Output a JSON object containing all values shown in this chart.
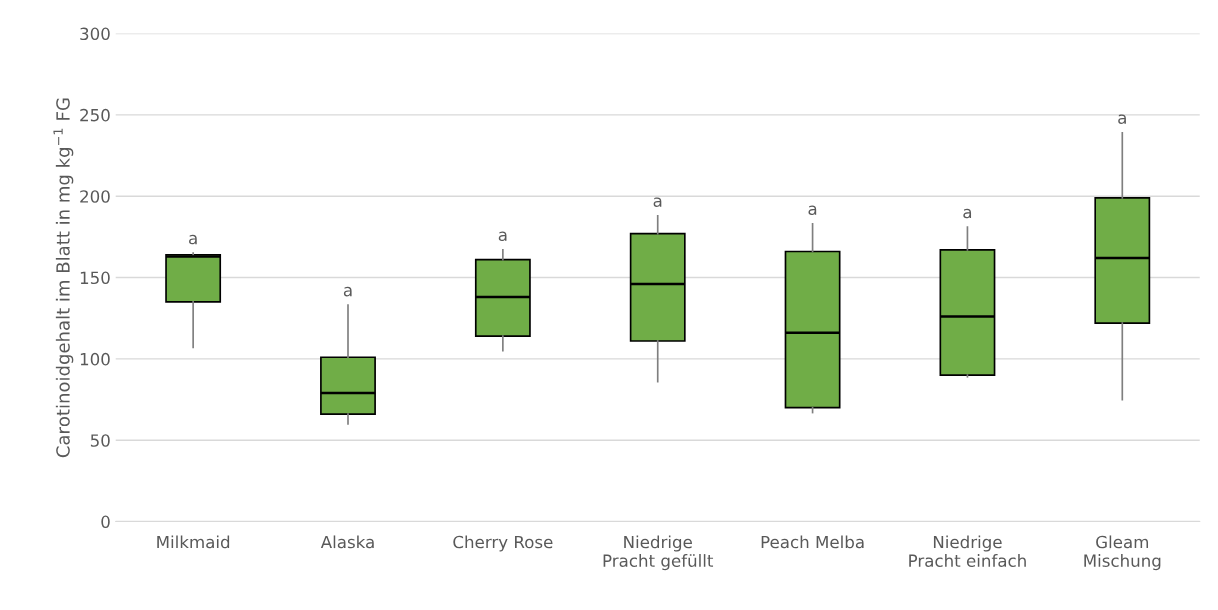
{
  "chart_data": {
    "type": "box",
    "ylabel": "Carotinoidgehalt im Blatt in mg kg$^{−1}$ FG",
    "categories": [
      "Milkmaid",
      "Alaska",
      "Cherry Rose",
      "Niedrige\nPracht gefüllt",
      "Peach Melba",
      "Niedrige\nPracht einfach",
      "Gleam\nMischung"
    ],
    "boxes": [
      {
        "low": 107,
        "q1": 135,
        "median": 163,
        "q3": 164,
        "high": 165
      },
      {
        "low": 60,
        "q1": 66,
        "median": 79,
        "q3": 101,
        "high": 133
      },
      {
        "low": 105,
        "q1": 114,
        "median": 138,
        "q3": 161,
        "high": 167
      },
      {
        "low": 86,
        "q1": 111,
        "median": 146,
        "q3": 177,
        "high": 188
      },
      {
        "low": 67,
        "q1": 70,
        "median": 116,
        "q3": 166,
        "high": 183
      },
      {
        "low": 89,
        "q1": 90,
        "median": 126,
        "q3": 167,
        "high": 181
      },
      {
        "low": 75,
        "q1": 122,
        "median": 162,
        "q3": 199,
        "high": 239
      }
    ],
    "color": "#70ad47",
    "ylim": [
      0,
      300
    ],
    "yticks": [
      0,
      50,
      100,
      150,
      200,
      250,
      300
    ],
    "grid": "y",
    "annotations": [
      {
        "text": "a",
        "x": "Milkmaid",
        "y": 165
      },
      {
        "text": "a",
        "x": "Alaska",
        "y": 133
      },
      {
        "text": "a",
        "x": "Cherry Rose",
        "y": 167
      },
      {
        "text": "a",
        "x": "Niedrige\nPracht gefüllt",
        "y": 188
      },
      {
        "text": "a",
        "x": "Peach Melba",
        "y": 183
      },
      {
        "text": "a",
        "x": "Niedrige\nPracht einfach",
        "y": 181
      },
      {
        "text": "a",
        "x": "Gleam\nMischung",
        "y": 239
      }
    ]
  }
}
